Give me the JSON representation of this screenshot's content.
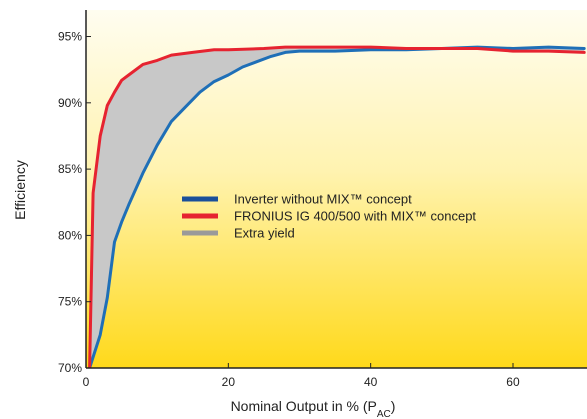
{
  "chart_data": {
    "type": "line",
    "xlabel": "Nominal Output in % (P",
    "xlabel_sub": "AC",
    "xlabel_end": ")",
    "ylabel": "Efficiency",
    "xlim": [
      0,
      70
    ],
    "ylim": [
      70,
      97
    ],
    "x_ticks": [
      {
        "value": 0,
        "label": "0"
      },
      {
        "value": 20,
        "label": "20"
      },
      {
        "value": 40,
        "label": "40"
      },
      {
        "value": 60,
        "label": "60"
      }
    ],
    "y_ticks": [
      {
        "value": 70,
        "label": "70%"
      },
      {
        "value": 75,
        "label": "75%"
      },
      {
        "value": 80,
        "label": "80%"
      },
      {
        "value": 85,
        "label": "85%"
      },
      {
        "value": 90,
        "label": "90%"
      },
      {
        "value": 95,
        "label": "95%"
      }
    ],
    "grid": false,
    "legend_position": "center",
    "background_gradient": [
      "#fffdf0",
      "#fff3b0",
      "#ffd91a"
    ],
    "fill_between": {
      "name": "Extra yield",
      "color": "#c8c8c8"
    },
    "series": [
      {
        "name": "Inverter without MIX™ concept",
        "color": "#1f6fb7",
        "legend_color": "#1a4f9a",
        "x": [
          0.5,
          2,
          3,
          4,
          5,
          6,
          8,
          10,
          12,
          14,
          16,
          18,
          20,
          22,
          24,
          26,
          28,
          30,
          35,
          40,
          45,
          50,
          55,
          60,
          65,
          70
        ],
        "y": [
          70,
          72.5,
          75.3,
          79.5,
          81,
          82.3,
          84.7,
          86.8,
          88.6,
          89.7,
          90.8,
          91.6,
          92.1,
          92.7,
          93.1,
          93.5,
          93.8,
          93.9,
          93.9,
          94,
          94,
          94.1,
          94.2,
          94.1,
          94.2,
          94.1
        ]
      },
      {
        "name": "FRONIUS IG 400/500 with MIX™ concept",
        "color": "#e62330",
        "legend_color": "#e62330",
        "x": [
          0.5,
          1,
          2,
          3,
          4,
          5,
          6,
          8,
          10,
          12,
          15,
          18,
          20,
          25,
          28,
          30,
          35,
          40,
          45,
          50,
          55,
          60,
          65,
          70
        ],
        "y": [
          70,
          83.2,
          87.5,
          89.8,
          90.8,
          91.7,
          92.1,
          92.9,
          93.2,
          93.6,
          93.8,
          94,
          94,
          94.1,
          94.2,
          94.2,
          94.2,
          94.2,
          94.1,
          94.1,
          94.1,
          93.9,
          93.9,
          93.8
        ]
      }
    ]
  }
}
